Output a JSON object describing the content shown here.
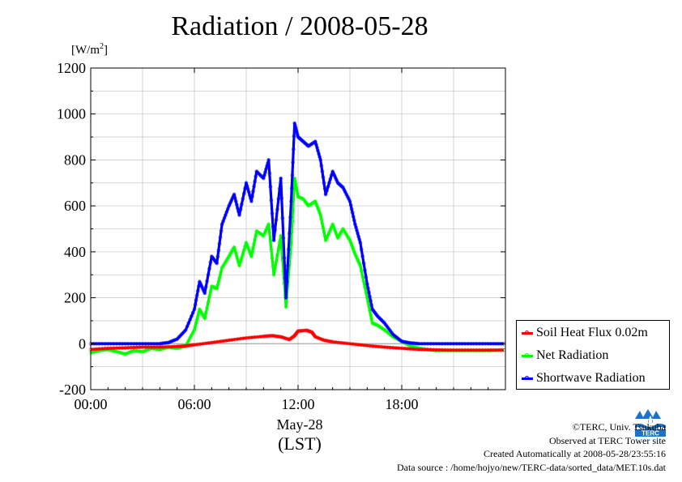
{
  "chart_data": {
    "type": "line",
    "title": "Radiation / 2008-05-28",
    "unit_prefix": "[W/m",
    "unit_exp": "2",
    "unit_suffix": "]",
    "xlabel_date": "May-28",
    "xlabel_tz": "(LST)",
    "xlim": [
      0,
      24
    ],
    "ylim": [
      -200,
      1200
    ],
    "yticks": [
      {
        "v": -200,
        "label": "-200"
      },
      {
        "v": 0,
        "label": "0"
      },
      {
        "v": 200,
        "label": "200"
      },
      {
        "v": 400,
        "label": "400"
      },
      {
        "v": 600,
        "label": "600"
      },
      {
        "v": 800,
        "label": "800"
      },
      {
        "v": 1000,
        "label": "1000"
      },
      {
        "v": 1200,
        "label": "1200"
      }
    ],
    "xticks": [
      {
        "v": 0,
        "label": "00:00"
      },
      {
        "v": 6,
        "label": "06:00"
      },
      {
        "v": 12,
        "label": "12:00"
      },
      {
        "v": 18,
        "label": "18:00"
      }
    ],
    "grid": true,
    "legend_position": "bottom-right, outside",
    "series": [
      {
        "name": "Soil Heat Flux 0.02m",
        "color": "#ff0000",
        "x": [
          0,
          1,
          2,
          3,
          4,
          5,
          5.5,
          6,
          7,
          8,
          9,
          10,
          10.5,
          11,
          11.5,
          11.8,
          12,
          12.5,
          12.8,
          13,
          13.5,
          14,
          15,
          16,
          17,
          18,
          19,
          20,
          21,
          22,
          23,
          23.9
        ],
        "values": [
          -25,
          -20,
          -18,
          -15,
          -15,
          -12,
          -10,
          -5,
          5,
          15,
          25,
          32,
          35,
          30,
          18,
          35,
          55,
          58,
          50,
          30,
          15,
          8,
          0,
          -8,
          -15,
          -20,
          -25,
          -27,
          -28,
          -28,
          -28,
          -28
        ]
      },
      {
        "name": "Net Radiation",
        "color": "#00ff00",
        "x": [
          0,
          0.5,
          1,
          1.5,
          2,
          2.5,
          3,
          3.5,
          4,
          4.5,
          5,
          5.5,
          6,
          6.3,
          6.6,
          7,
          7.3,
          7.6,
          8,
          8.3,
          8.6,
          9,
          9.3,
          9.6,
          10,
          10.3,
          10.6,
          11,
          11.3,
          11.6,
          11.8,
          12,
          12.3,
          12.6,
          13,
          13.3,
          13.6,
          14,
          14.3,
          14.6,
          15,
          15.3,
          15.6,
          16,
          16.3,
          16.6,
          17,
          17.5,
          18,
          18.5,
          19,
          19.5,
          20,
          21,
          22,
          23,
          23.9
        ],
        "values": [
          -40,
          -30,
          -25,
          -35,
          -45,
          -30,
          -35,
          -20,
          -25,
          -15,
          -20,
          -10,
          60,
          150,
          110,
          250,
          240,
          330,
          380,
          420,
          340,
          440,
          380,
          490,
          470,
          520,
          300,
          470,
          160,
          440,
          720,
          640,
          630,
          600,
          620,
          560,
          450,
          520,
          460,
          500,
          450,
          390,
          340,
          200,
          90,
          80,
          60,
          30,
          10,
          -10,
          -20,
          -25,
          -30,
          -30,
          -30,
          -30,
          -28
        ]
      },
      {
        "name": "Shortwave Radiation",
        "color": "#0000ff",
        "x": [
          0,
          1,
          2,
          3,
          4,
          4.5,
          5,
          5.5,
          6,
          6.3,
          6.6,
          7,
          7.3,
          7.6,
          8,
          8.3,
          8.6,
          9,
          9.3,
          9.6,
          10,
          10.3,
          10.6,
          11,
          11.3,
          11.6,
          11.8,
          12,
          12.3,
          12.6,
          13,
          13.3,
          13.6,
          14,
          14.3,
          14.6,
          15,
          15.3,
          15.6,
          16,
          16.3,
          16.6,
          17,
          17.5,
          18,
          18.5,
          19,
          20,
          21,
          22,
          23,
          23.9
        ],
        "values": [
          0,
          0,
          0,
          0,
          0,
          5,
          20,
          60,
          150,
          270,
          220,
          380,
          350,
          520,
          600,
          650,
          560,
          700,
          620,
          750,
          720,
          800,
          450,
          720,
          200,
          620,
          960,
          900,
          880,
          860,
          880,
          800,
          650,
          750,
          700,
          680,
          620,
          520,
          440,
          260,
          150,
          120,
          90,
          40,
          10,
          3,
          0,
          0,
          0,
          0,
          0,
          0
        ]
      }
    ]
  },
  "credits": {
    "copyright": "©TERC, Univ. Tsukuba",
    "observed": "Observed at TERC Tower site",
    "created": "Created Automatically at 2008-05-28/23:55:16",
    "source": "Data source : /home/hojyo/new/TERC-data/sorted_data/MET.10s.dat"
  },
  "logo": {
    "icon": "terc-logo-icon",
    "text": "TERC",
    "color": "#1a73c9"
  }
}
